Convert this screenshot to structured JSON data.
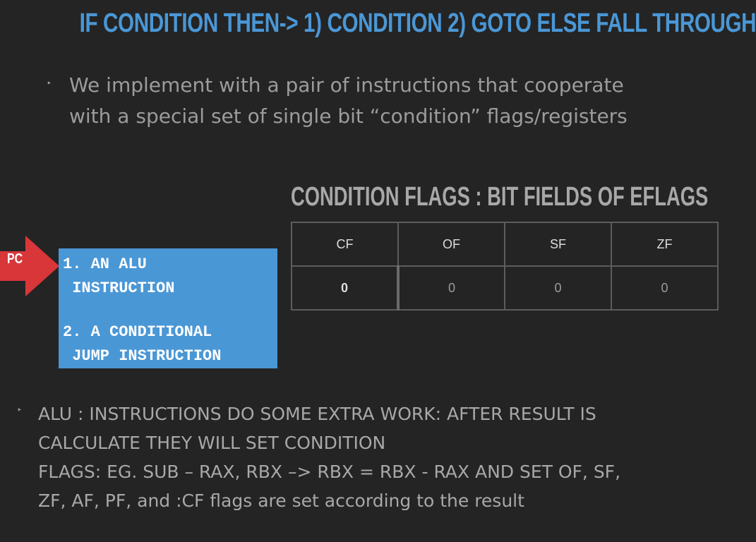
{
  "slide": {
    "title": "IF CONDITION THEN-> 1) CONDITION 2) GOTO ELSE FALL THROUGH",
    "bullet1": {
      "marker": "‣",
      "text": "We implement with a pair of instructions that cooperate\nwith a special set of single bit “condition” flags/registers"
    },
    "flags_heading": "CONDITION FLAGS :  BIT FIELDS OF EFLAGS",
    "flags_table": {
      "headers": [
        "CF",
        "OF",
        "SF",
        "ZF"
      ],
      "values": [
        "0",
        "0",
        "0",
        "0"
      ]
    },
    "pc_label": "PC",
    "instructions": {
      "item1_line1": "1. AN ALU",
      "item1_line2": " INSTRUCTION",
      "item2_line1": "2. A CONDITIONAL",
      "item2_line2": " JUMP INSTRUCTION"
    },
    "bullet2": {
      "marker": "‣",
      "text": "ALU : INSTRUCTIONS DO SOME EXTRA WORK: AFTER RESULT IS\nCALCULATE THEY WILL SET CONDITION\nFLAGS:  EG. SUB – RAX, RBX –> RBX = RBX - RAX  AND SET OF, SF,\nZF, AF, PF, and :CF flags are set according to the result"
    }
  },
  "colors": {
    "background": "#242424",
    "accent_blue": "#4a97d6",
    "arrow_red": "#d9363a",
    "text_gray": "#9c9c9c"
  },
  "icons": {
    "pc_pointer": "right-arrow-icon"
  }
}
